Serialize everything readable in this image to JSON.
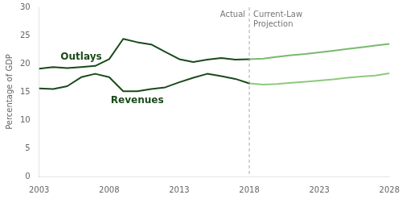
{
  "chart_data": {
    "type": "line",
    "ylabel": "Percentage of GDP",
    "xlim": [
      2003,
      2028
    ],
    "ylim": [
      0,
      30
    ],
    "xticks": [
      2003,
      2008,
      2013,
      2018,
      2023,
      2028
    ],
    "yticks": [
      0,
      5,
      10,
      15,
      20,
      25,
      30
    ],
    "grid": false,
    "vline_x": 2018,
    "annotations": [
      "Actual",
      "Current-Law\nProjection"
    ],
    "series": [
      {
        "name": "Outlays",
        "color": "#1a4a1a",
        "x": [
          2003,
          2004,
          2005,
          2006,
          2007,
          2008,
          2009,
          2010,
          2011,
          2012,
          2013,
          2014,
          2015,
          2016,
          2017,
          2018
        ],
        "values": [
          19.1,
          19.4,
          19.2,
          19.4,
          19.6,
          20.8,
          24.4,
          23.8,
          23.4,
          22.1,
          20.8,
          20.3,
          20.7,
          21.0,
          20.7,
          20.8
        ]
      },
      {
        "name": "Revenues",
        "color": "#1a4a1a",
        "x": [
          2003,
          2004,
          2005,
          2006,
          2007,
          2008,
          2009,
          2010,
          2011,
          2012,
          2013,
          2014,
          2015,
          2016,
          2017,
          2018
        ],
        "values": [
          15.6,
          15.5,
          16.0,
          17.6,
          18.2,
          17.6,
          15.1,
          15.1,
          15.5,
          15.8,
          16.7,
          17.5,
          18.2,
          17.8,
          17.3,
          16.5
        ]
      },
      {
        "name": "Outlays",
        "color": "#7ab870",
        "x": [
          2018,
          2019,
          2020,
          2021,
          2022,
          2023,
          2024,
          2025,
          2026,
          2027,
          2028
        ],
        "values": [
          20.8,
          20.9,
          21.2,
          21.5,
          21.7,
          22.0,
          22.3,
          22.6,
          22.9,
          23.2,
          23.5
        ]
      },
      {
        "name": "Revenues",
        "color": "#8ec97e",
        "x": [
          2018,
          2019,
          2020,
          2021,
          2022,
          2023,
          2024,
          2025,
          2026,
          2027,
          2028
        ],
        "values": [
          16.5,
          16.3,
          16.4,
          16.6,
          16.8,
          17.0,
          17.2,
          17.5,
          17.7,
          17.9,
          18.3
        ]
      }
    ]
  }
}
